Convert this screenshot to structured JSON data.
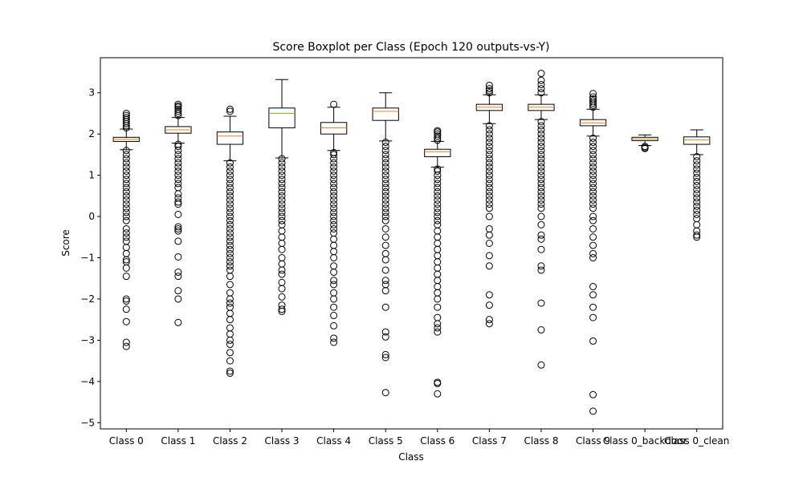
{
  "chart_data": {
    "type": "boxplot",
    "title": "Score Boxplot per Class (Epoch 120 outputs-vs-Y)",
    "xlabel": "Class",
    "ylabel": "Score",
    "ylim": [
      -5.15,
      3.85
    ],
    "yticks": [
      3,
      2,
      1,
      0,
      -1,
      -2,
      -3,
      -4,
      -5
    ],
    "ytick_labels": [
      "3",
      "2",
      "1",
      "0",
      "−1",
      "−2",
      "−3",
      "−4",
      "−5"
    ],
    "grid": false,
    "colors": {
      "box": "#000000",
      "median": "#ff7f0e",
      "flier": "#000000",
      "background": "#ffffff"
    },
    "categories": [
      "Class 0",
      "Class 1",
      "Class 2",
      "Class 3",
      "Class 4",
      "Class 5",
      "Class 6",
      "Class 7",
      "Class 8",
      "Class 9",
      "Class 0_backdoor",
      "Class 0_clean"
    ],
    "boxes": [
      {
        "q1": 1.82,
        "median": 1.87,
        "q3": 1.92,
        "whisker_low": 1.62,
        "whisker_high": 2.12,
        "fliers": [
          2.5,
          2.45,
          2.4,
          2.35,
          2.3,
          2.25,
          2.2,
          2.15,
          1.6,
          1.5,
          1.4,
          1.3,
          1.2,
          1.1,
          1.0,
          0.9,
          0.8,
          0.7,
          0.6,
          0.5,
          0.4,
          0.3,
          0.2,
          0.1,
          0.0,
          -0.1,
          -0.3,
          -0.4,
          -0.5,
          -0.6,
          -0.75,
          -0.9,
          -1.05,
          -1.1,
          -1.25,
          -1.45,
          -2.0,
          -2.05,
          -2.25,
          -2.55,
          -3.05,
          -3.15
        ]
      },
      {
        "q1": 2.02,
        "median": 2.1,
        "q3": 2.18,
        "whisker_low": 1.78,
        "whisker_high": 2.4,
        "fliers": [
          2.72,
          2.68,
          2.65,
          2.6,
          2.55,
          2.5,
          2.45,
          1.75,
          1.7,
          1.6,
          1.5,
          1.4,
          1.3,
          1.2,
          1.1,
          1.0,
          0.9,
          0.8,
          0.7,
          0.55,
          0.45,
          0.35,
          0.3,
          0.05,
          -0.25,
          -0.3,
          -0.35,
          -0.6,
          -0.98,
          -1.35,
          -1.45,
          -1.8,
          -2.0,
          -2.57
        ]
      },
      {
        "q1": 1.75,
        "median": 1.95,
        "q3": 2.05,
        "whisker_low": 1.35,
        "whisker_high": 2.43,
        "fliers": [
          2.6,
          2.55,
          1.3,
          1.2,
          1.1,
          1.0,
          0.9,
          0.8,
          0.7,
          0.6,
          0.5,
          0.4,
          0.3,
          0.2,
          0.1,
          0.0,
          -0.1,
          -0.2,
          -0.3,
          -0.4,
          -0.5,
          -0.6,
          -0.7,
          -0.8,
          -0.9,
          -1.0,
          -1.1,
          -1.2,
          -1.3,
          -1.45,
          -1.65,
          -1.85,
          -2.0,
          -2.1,
          -2.2,
          -2.35,
          -2.5,
          -2.7,
          -2.85,
          -3.0,
          -3.1,
          -3.3,
          -3.5,
          -3.75,
          -3.8
        ]
      },
      {
        "q1": 2.15,
        "median": 2.5,
        "q3": 2.63,
        "whisker_low": 1.42,
        "whisker_high": 3.32,
        "fliers": [
          1.4,
          1.3,
          1.2,
          1.1,
          1.0,
          0.9,
          0.8,
          0.7,
          0.6,
          0.5,
          0.4,
          0.3,
          0.2,
          0.1,
          0.0,
          -0.1,
          -0.2,
          -0.35,
          -0.5,
          -0.65,
          -0.8,
          -1.0,
          -1.15,
          -1.3,
          -1.4,
          -1.6,
          -1.75,
          -1.95,
          -2.15,
          -2.25,
          -2.3
        ]
      },
      {
        "q1": 2.0,
        "median": 2.15,
        "q3": 2.28,
        "whisker_low": 1.6,
        "whisker_high": 2.65,
        "fliers": [
          2.72,
          1.55,
          1.5,
          1.4,
          1.3,
          1.2,
          1.1,
          1.0,
          0.9,
          0.8,
          0.7,
          0.6,
          0.5,
          0.4,
          0.3,
          0.2,
          0.1,
          0.0,
          -0.1,
          -0.2,
          -0.3,
          -0.4,
          -0.55,
          -0.7,
          -0.85,
          -1.0,
          -1.2,
          -1.35,
          -1.55,
          -1.65,
          -1.85,
          -2.0,
          -2.2,
          -2.4,
          -2.65,
          -2.95,
          -3.05
        ]
      },
      {
        "q1": 2.33,
        "median": 2.55,
        "q3": 2.63,
        "whisker_low": 1.83,
        "whisker_high": 3.0,
        "fliers": [
          1.8,
          1.7,
          1.6,
          1.5,
          1.4,
          1.3,
          1.2,
          1.1,
          1.0,
          0.9,
          0.8,
          0.7,
          0.6,
          0.5,
          0.4,
          0.3,
          0.2,
          0.1,
          0.0,
          -0.1,
          -0.3,
          -0.5,
          -0.7,
          -0.9,
          -1.05,
          -1.3,
          -1.55,
          -1.65,
          -1.8,
          -2.2,
          -2.8,
          -2.92,
          -3.35,
          -3.42,
          -4.27
        ]
      },
      {
        "q1": 1.45,
        "median": 1.57,
        "q3": 1.63,
        "whisker_low": 1.2,
        "whisker_high": 1.82,
        "fliers": [
          2.08,
          2.05,
          2.0,
          1.95,
          1.9,
          1.85,
          1.15,
          1.1,
          1.0,
          0.9,
          0.8,
          0.7,
          0.6,
          0.5,
          0.4,
          0.3,
          0.2,
          0.1,
          0.0,
          -0.1,
          -0.2,
          -0.35,
          -0.5,
          -0.65,
          -0.8,
          -0.95,
          -1.1,
          -1.25,
          -1.4,
          -1.55,
          -1.7,
          -1.85,
          -2.0,
          -2.2,
          -2.45,
          -2.6,
          -2.7,
          -2.8,
          -4.02,
          -4.05,
          -4.3
        ]
      },
      {
        "q1": 2.57,
        "median": 2.65,
        "q3": 2.72,
        "whisker_low": 2.25,
        "whisker_high": 2.95,
        "fliers": [
          3.18,
          3.1,
          3.05,
          3.0,
          2.2,
          2.1,
          2.0,
          1.9,
          1.8,
          1.7,
          1.6,
          1.5,
          1.4,
          1.3,
          1.2,
          1.1,
          1.0,
          0.9,
          0.8,
          0.7,
          0.6,
          0.5,
          0.4,
          0.3,
          0.2,
          0.0,
          -0.3,
          -0.45,
          -0.65,
          -0.95,
          -1.2,
          -1.9,
          -2.15,
          -2.5,
          -2.6
        ]
      },
      {
        "q1": 2.57,
        "median": 2.65,
        "q3": 2.72,
        "whisker_low": 2.35,
        "whisker_high": 2.95,
        "fliers": [
          3.47,
          3.3,
          3.2,
          3.1,
          3.0,
          2.3,
          2.2,
          2.1,
          2.0,
          1.9,
          1.8,
          1.7,
          1.6,
          1.5,
          1.4,
          1.3,
          1.2,
          1.1,
          1.0,
          0.9,
          0.8,
          0.7,
          0.6,
          0.5,
          0.4,
          0.3,
          0.2,
          0.0,
          -0.2,
          -0.45,
          -0.55,
          -0.8,
          -1.2,
          -1.3,
          -2.1,
          -2.75,
          -3.6
        ]
      },
      {
        "q1": 2.2,
        "median": 2.27,
        "q3": 2.35,
        "whisker_low": 1.95,
        "whisker_high": 2.6,
        "fliers": [
          2.98,
          2.9,
          2.85,
          2.8,
          2.75,
          2.7,
          2.65,
          1.9,
          1.8,
          1.7,
          1.6,
          1.5,
          1.4,
          1.3,
          1.2,
          1.1,
          1.0,
          0.9,
          0.8,
          0.7,
          0.6,
          0.5,
          0.4,
          0.3,
          0.2,
          0.0,
          -0.1,
          -0.3,
          -0.5,
          -0.7,
          -0.9,
          -1.0,
          -1.7,
          -1.9,
          -2.2,
          -2.45,
          -3.02,
          -4.32,
          -4.72
        ]
      },
      {
        "q1": 1.84,
        "median": 1.88,
        "q3": 1.92,
        "whisker_low": 1.72,
        "whisker_high": 1.98,
        "fliers": [
          1.7,
          1.67,
          1.65
        ]
      },
      {
        "q1": 1.75,
        "median": 1.86,
        "q3": 1.93,
        "whisker_low": 1.5,
        "whisker_high": 2.1,
        "fliers": [
          1.45,
          1.35,
          1.25,
          1.15,
          1.05,
          0.95,
          0.85,
          0.75,
          0.65,
          0.55,
          0.45,
          0.35,
          0.25,
          0.15,
          0.05,
          -0.05,
          -0.2,
          -0.35,
          -0.45,
          -0.5
        ]
      }
    ]
  }
}
